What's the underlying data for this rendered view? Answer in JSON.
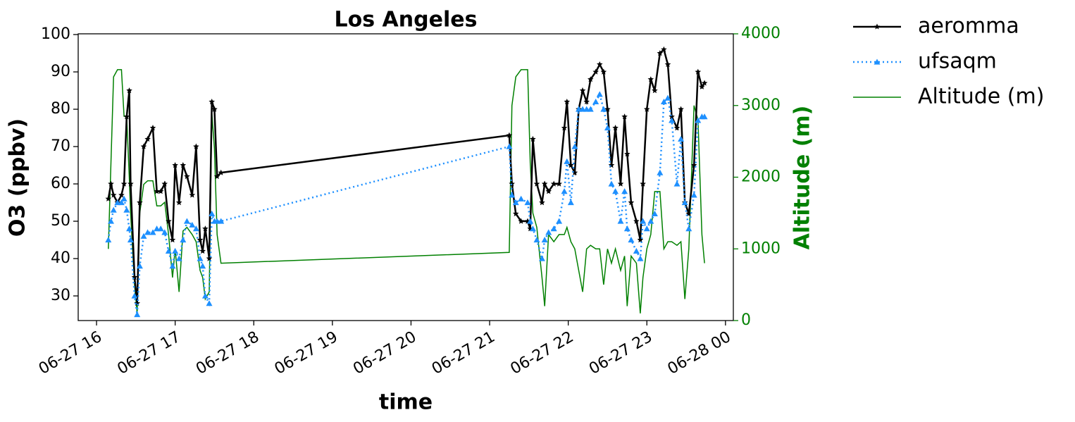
{
  "chart_data": {
    "type": "line",
    "title": "Los Angeles",
    "xlabel": "time",
    "ylabel": "O3 (ppbv)",
    "y2label": "Altitude (m)",
    "y2color": "#008000",
    "x": [
      "06-27 16:09",
      "06-27 16:11",
      "06-27 16:13",
      "06-27 16:16",
      "06-27 16:19",
      "06-27 16:21",
      "06-27 16:23",
      "06-27 16:25",
      "06-27 16:26",
      "06-27 16:29",
      "06-27 16:31",
      "06-27 16:33",
      "06-27 16:36",
      "06-27 16:39",
      "06-27 16:43",
      "06-27 16:46",
      "06-27 16:49",
      "06-27 16:52",
      "06-27 16:55",
      "06-27 16:58",
      "06-27 17:00",
      "06-27 17:03",
      "06-27 17:06",
      "06-27 17:09",
      "06-27 17:13",
      "06-27 17:16",
      "06-27 17:19",
      "06-27 17:21",
      "06-27 17:23",
      "06-27 17:26",
      "06-27 17:28",
      "06-27 17:30",
      "06-27 17:32",
      "06-27 17:35",
      "06-27 21:15",
      "06-27 21:17",
      "06-27 21:20",
      "06-27 21:24",
      "06-27 21:29",
      "06-27 21:31",
      "06-27 21:33",
      "06-27 21:36",
      "06-27 21:40",
      "06-27 21:42",
      "06-27 21:45",
      "06-27 21:49",
      "06-27 21:53",
      "06-27 21:57",
      "06-27 21:59",
      "06-27 22:02",
      "06-27 22:05",
      "06-27 22:08",
      "06-27 22:11",
      "06-27 22:14",
      "06-27 22:17",
      "06-27 22:21",
      "06-27 22:24",
      "06-27 22:27",
      "06-27 22:30",
      "06-27 22:33",
      "06-27 22:36",
      "06-27 22:40",
      "06-27 22:43",
      "06-27 22:45",
      "06-27 22:48",
      "06-27 22:52",
      "06-27 22:55",
      "06-27 22:57",
      "06-27 23:00",
      "06-27 23:03",
      "06-27 23:06",
      "06-27 23:10",
      "06-27 23:13",
      "06-27 23:16",
      "06-27 23:19",
      "06-27 23:23",
      "06-27 23:26",
      "06-27 23:29",
      "06-27 23:32",
      "06-27 23:36",
      "06-27 23:39",
      "06-27 23:42",
      "06-27 23:44"
    ],
    "series": [
      {
        "name": "aeromma",
        "color": "#000000",
        "linestyle": "solid",
        "marker": "star",
        "values": [
          56,
          60,
          57,
          55,
          57,
          60,
          78,
          85,
          60,
          35,
          28,
          55,
          70,
          72,
          75,
          58,
          58,
          60,
          50,
          45,
          65,
          55,
          65,
          62,
          57,
          70,
          45,
          42,
          48,
          40,
          82,
          80,
          62,
          63,
          73,
          60,
          52,
          50,
          50,
          48,
          72,
          60,
          55,
          60,
          58,
          60,
          60,
          75,
          82,
          65,
          63,
          80,
          85,
          82,
          88,
          90,
          92,
          90,
          80,
          65,
          75,
          60,
          78,
          68,
          55,
          50,
          45,
          60,
          80,
          88,
          85,
          95,
          96,
          92,
          78,
          75,
          80,
          55,
          52,
          65,
          90,
          86,
          87
        ]
      },
      {
        "name": "ufsaqm",
        "color": "#1e90ff",
        "linestyle": "dotted",
        "marker": "triangle",
        "values": [
          45,
          50,
          53,
          55,
          55,
          56,
          53,
          48,
          45,
          30,
          25,
          38,
          46,
          47,
          47,
          48,
          48,
          47,
          42,
          38,
          42,
          40,
          45,
          50,
          49,
          48,
          40,
          38,
          30,
          28,
          52,
          50,
          50,
          50,
          70,
          57,
          55,
          56,
          55,
          50,
          48,
          45,
          40,
          45,
          47,
          48,
          50,
          58,
          66,
          55,
          70,
          80,
          80,
          80,
          80,
          82,
          84,
          80,
          75,
          60,
          58,
          50,
          58,
          48,
          45,
          42,
          40,
          50,
          48,
          50,
          52,
          63,
          82,
          83,
          77,
          60,
          72,
          55,
          48,
          57,
          77,
          78,
          78
        ]
      },
      {
        "name": "Altitude (m)",
        "color": "#008000",
        "linestyle": "solid",
        "marker": "none",
        "axis": "y2",
        "values": [
          1000,
          2200,
          3400,
          3500,
          3500,
          2850,
          2850,
          2000,
          1500,
          500,
          100,
          1500,
          1900,
          1950,
          1950,
          1600,
          1600,
          1650,
          1200,
          600,
          1000,
          400,
          1250,
          1300,
          1200,
          1100,
          700,
          600,
          300,
          400,
          2900,
          2400,
          1200,
          800,
          950,
          3000,
          3400,
          3500,
          3500,
          2200,
          1500,
          1300,
          600,
          200,
          1200,
          1100,
          1200,
          1200,
          1300,
          1100,
          1000,
          700,
          400,
          1000,
          1050,
          1000,
          1000,
          500,
          1000,
          800,
          1000,
          700,
          900,
          200,
          900,
          800,
          100,
          600,
          1000,
          1200,
          1800,
          1800,
          1000,
          1100,
          1100,
          1050,
          1100,
          300,
          1000,
          3000,
          2800,
          1200,
          800
        ]
      }
    ],
    "xlim": [
      "06-27 15:46",
      "06-28 00:06"
    ],
    "xticks": [
      {
        "value": "06-27 16:00",
        "label": "06-27 16"
      },
      {
        "value": "06-27 17:00",
        "label": "06-27 17"
      },
      {
        "value": "06-27 18:00",
        "label": "06-27 18"
      },
      {
        "value": "06-27 19:00",
        "label": "06-27 19"
      },
      {
        "value": "06-27 20:00",
        "label": "06-27 20"
      },
      {
        "value": "06-27 21:00",
        "label": "06-27 21"
      },
      {
        "value": "06-27 22:00",
        "label": "06-27 22"
      },
      {
        "value": "06-27 23:00",
        "label": "06-27 23"
      },
      {
        "value": "06-28 00:00",
        "label": "06-28 00"
      }
    ],
    "ylim": [
      23.4,
      100.2
    ],
    "yticks": [
      30,
      40,
      50,
      60,
      70,
      80,
      90,
      100
    ],
    "y2lim": [
      0,
      4000
    ],
    "y2ticks": [
      0,
      1000,
      2000,
      3000,
      4000
    ],
    "legend": "outside-right"
  }
}
